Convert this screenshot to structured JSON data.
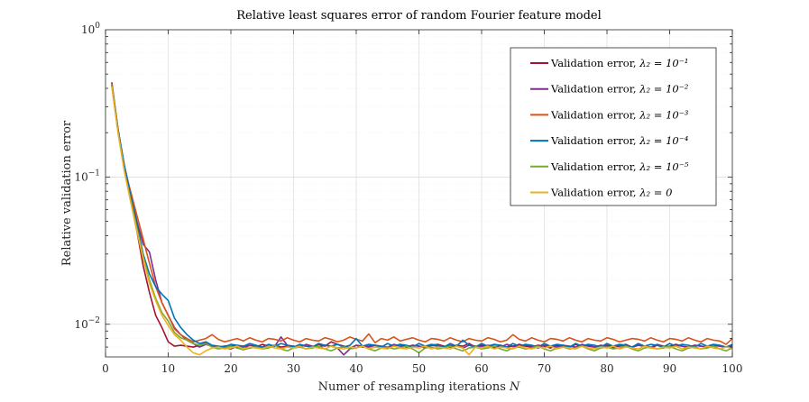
{
  "chart_data": {
    "type": "line",
    "title": "Relative least squares error of random Fourier feature model",
    "xlabel": "Numer of resampling iterations",
    "xlabel_var": "N",
    "ylabel": "Relative validation error",
    "xlim": [
      0,
      100
    ],
    "ylim": [
      0.006,
      1
    ],
    "yscale": "log",
    "grid": true,
    "legend_position": "top-right",
    "x_ticks": [
      0,
      10,
      20,
      30,
      40,
      50,
      60,
      70,
      80,
      90,
      100
    ],
    "y_ticks": [
      {
        "value": 0.01,
        "base": "10",
        "exp": "−2"
      },
      {
        "value": 0.1,
        "base": "10",
        "exp": "−1"
      },
      {
        "value": 1,
        "base": "10",
        "exp": "0"
      }
    ],
    "x": [
      1,
      2,
      3,
      4,
      5,
      6,
      7,
      8,
      9,
      10,
      11,
      12,
      13,
      14,
      15,
      16,
      17,
      18,
      19,
      20,
      21,
      22,
      23,
      24,
      25,
      26,
      27,
      28,
      29,
      30,
      31,
      32,
      33,
      34,
      35,
      36,
      37,
      38,
      39,
      40,
      41,
      42,
      43,
      44,
      45,
      46,
      47,
      48,
      49,
      50,
      51,
      52,
      53,
      54,
      55,
      56,
      57,
      58,
      59,
      60,
      61,
      62,
      63,
      64,
      65,
      66,
      67,
      68,
      69,
      70,
      71,
      72,
      73,
      74,
      75,
      76,
      77,
      78,
      79,
      80,
      81,
      82,
      83,
      84,
      85,
      86,
      87,
      88,
      89,
      90,
      91,
      92,
      93,
      94,
      95,
      96,
      97,
      98,
      99,
      100
    ],
    "series": [
      {
        "name": "Validation error,",
        "lambda_label": "λ₂ = 10⁻¹",
        "color": "#A2142F",
        "values": [
          0.44,
          0.21,
          0.115,
          0.07,
          0.043,
          0.025,
          0.0165,
          0.0115,
          0.0095,
          0.0076,
          0.0071,
          0.0072,
          0.0071,
          0.007,
          0.0072,
          0.0075,
          0.0071,
          0.007,
          0.0071,
          0.0072,
          0.007,
          0.0071,
          0.0069,
          0.007,
          0.0073,
          0.0071,
          0.0072,
          0.007,
          0.0071,
          0.0069,
          0.0072,
          0.0071,
          0.007,
          0.0073,
          0.0071,
          0.0076,
          0.0073,
          0.0071,
          0.0069,
          0.0072,
          0.007,
          0.0071,
          0.0072,
          0.007,
          0.0069,
          0.0071,
          0.0073,
          0.007,
          0.0072,
          0.0071,
          0.0069,
          0.0072,
          0.0073,
          0.0071,
          0.007,
          0.0072,
          0.0071,
          0.0074,
          0.007,
          0.0072,
          0.0071,
          0.0069,
          0.0072,
          0.007,
          0.0071,
          0.0073,
          0.0071,
          0.007,
          0.0072,
          0.0071,
          0.0069,
          0.0072,
          0.0071,
          0.007,
          0.0073,
          0.0071,
          0.0072,
          0.007,
          0.0071,
          0.0072,
          0.007,
          0.0071,
          0.0073,
          0.007,
          0.0072,
          0.0071,
          0.0069,
          0.0072,
          0.007,
          0.0071,
          0.0073,
          0.0071,
          0.007,
          0.0072,
          0.0071,
          0.007,
          0.0072,
          0.0071,
          0.007,
          0.0072
        ]
      },
      {
        "name": "Validation error,",
        "lambda_label": "λ₂ = 10⁻²",
        "color": "#7E2F8E",
        "values": [
          0.42,
          0.21,
          0.12,
          0.078,
          0.05,
          0.035,
          0.031,
          0.02,
          0.014,
          0.0115,
          0.0095,
          0.0085,
          0.0078,
          0.0074,
          0.007,
          0.0073,
          0.0071,
          0.007,
          0.0069,
          0.0068,
          0.0071,
          0.007,
          0.0072,
          0.0071,
          0.007,
          0.0072,
          0.0071,
          0.0082,
          0.0072,
          0.0071,
          0.007,
          0.0073,
          0.0071,
          0.007,
          0.0072,
          0.0071,
          0.0069,
          0.0062,
          0.0068,
          0.0072,
          0.0071,
          0.007,
          0.0072,
          0.0071,
          0.007,
          0.0073,
          0.0071,
          0.007,
          0.0072,
          0.0071,
          0.007,
          0.0072,
          0.0071,
          0.007,
          0.0072,
          0.0071,
          0.0069,
          0.0072,
          0.0071,
          0.007,
          0.0072,
          0.0071,
          0.007,
          0.0073,
          0.0071,
          0.007,
          0.0072,
          0.0071,
          0.0069,
          0.0072,
          0.0071,
          0.007,
          0.0072,
          0.0071,
          0.007,
          0.0073,
          0.0071,
          0.007,
          0.0072,
          0.0071,
          0.0069,
          0.0072,
          0.0071,
          0.007,
          0.0072,
          0.0071,
          0.007,
          0.0073,
          0.0071,
          0.007,
          0.0072,
          0.0071,
          0.0069,
          0.0072,
          0.0071,
          0.007,
          0.0072,
          0.0071,
          0.007,
          0.0071
        ]
      },
      {
        "name": "Validation error,",
        "lambda_label": "λ₂ = 10⁻³",
        "color": "#D95319",
        "values": [
          0.43,
          0.21,
          0.115,
          0.08,
          0.055,
          0.038,
          0.026,
          0.018,
          0.014,
          0.0115,
          0.0093,
          0.0085,
          0.008,
          0.0076,
          0.0078,
          0.008,
          0.0085,
          0.0079,
          0.0076,
          0.0078,
          0.008,
          0.0077,
          0.0081,
          0.0078,
          0.0076,
          0.008,
          0.0079,
          0.0077,
          0.0081,
          0.0078,
          0.0076,
          0.008,
          0.0078,
          0.0077,
          0.0081,
          0.0079,
          0.0076,
          0.0078,
          0.0082,
          0.0079,
          0.0077,
          0.0086,
          0.0075,
          0.008,
          0.0078,
          0.0082,
          0.0077,
          0.0079,
          0.0081,
          0.0078,
          0.0076,
          0.008,
          0.0079,
          0.0077,
          0.0081,
          0.0078,
          0.0076,
          0.008,
          0.0078,
          0.0077,
          0.0081,
          0.0079,
          0.0076,
          0.0078,
          0.0085,
          0.0079,
          0.0077,
          0.0081,
          0.0078,
          0.0076,
          0.008,
          0.0079,
          0.0077,
          0.0081,
          0.0078,
          0.0076,
          0.008,
          0.0078,
          0.0077,
          0.0081,
          0.0079,
          0.0076,
          0.0078,
          0.008,
          0.0079,
          0.0077,
          0.0081,
          0.0078,
          0.0076,
          0.008,
          0.0079,
          0.0077,
          0.0081,
          0.0078,
          0.0076,
          0.008,
          0.0078,
          0.0077,
          0.0073,
          0.008
        ]
      },
      {
        "name": "Validation error,",
        "lambda_label": "λ₂ = 10⁻⁴",
        "color": "#0072BD",
        "values": [
          0.42,
          0.21,
          0.12,
          0.075,
          0.048,
          0.03,
          0.022,
          0.018,
          0.016,
          0.0145,
          0.011,
          0.0095,
          0.0085,
          0.0078,
          0.0074,
          0.0076,
          0.0072,
          0.0071,
          0.007,
          0.0073,
          0.0072,
          0.0071,
          0.0074,
          0.0072,
          0.007,
          0.0073,
          0.0071,
          0.0074,
          0.0072,
          0.007,
          0.0073,
          0.0071,
          0.007,
          0.0074,
          0.0072,
          0.0071,
          0.0073,
          0.007,
          0.0072,
          0.008,
          0.0071,
          0.0073,
          0.0072,
          0.007,
          0.0074,
          0.0071,
          0.0073,
          0.0072,
          0.007,
          0.0074,
          0.0071,
          0.0073,
          0.0072,
          0.007,
          0.0074,
          0.0071,
          0.0078,
          0.0072,
          0.007,
          0.0074,
          0.0071,
          0.0073,
          0.0072,
          0.007,
          0.0074,
          0.0071,
          0.0073,
          0.0072,
          0.007,
          0.0074,
          0.0071,
          0.0073,
          0.0072,
          0.007,
          0.0074,
          0.0071,
          0.0073,
          0.0072,
          0.007,
          0.0074,
          0.0071,
          0.0073,
          0.0072,
          0.007,
          0.0074,
          0.0071,
          0.0073,
          0.0072,
          0.007,
          0.0074,
          0.0071,
          0.0073,
          0.0072,
          0.007,
          0.0074,
          0.0071,
          0.0073,
          0.0072,
          0.007,
          0.0073
        ]
      },
      {
        "name": "Validation error,",
        "lambda_label": "λ₂ = 10⁻⁵",
        "color": "#77AC30",
        "values": [
          0.42,
          0.2,
          0.11,
          0.07,
          0.045,
          0.029,
          0.02,
          0.015,
          0.012,
          0.0105,
          0.0088,
          0.0081,
          0.0078,
          0.0074,
          0.0072,
          0.0074,
          0.007,
          0.0068,
          0.0069,
          0.0071,
          0.0069,
          0.0067,
          0.0069,
          0.007,
          0.0068,
          0.0069,
          0.0072,
          0.0068,
          0.0066,
          0.0069,
          0.007,
          0.0068,
          0.0069,
          0.0071,
          0.0068,
          0.0066,
          0.0069,
          0.007,
          0.0068,
          0.0069,
          0.0071,
          0.0068,
          0.0066,
          0.0069,
          0.007,
          0.0068,
          0.0069,
          0.0071,
          0.0068,
          0.0064,
          0.0069,
          0.007,
          0.0068,
          0.0069,
          0.0071,
          0.0068,
          0.0066,
          0.0069,
          0.007,
          0.0068,
          0.0069,
          0.0071,
          0.0068,
          0.0066,
          0.0069,
          0.007,
          0.0068,
          0.0069,
          0.0071,
          0.0068,
          0.0066,
          0.0069,
          0.007,
          0.0068,
          0.0069,
          0.0071,
          0.0068,
          0.0066,
          0.0069,
          0.007,
          0.0068,
          0.0069,
          0.0071,
          0.0068,
          0.0066,
          0.0069,
          0.007,
          0.0068,
          0.0069,
          0.0071,
          0.0068,
          0.0066,
          0.0069,
          0.007,
          0.0068,
          0.0069,
          0.0071,
          0.0068,
          0.0066,
          0.0069
        ]
      },
      {
        "name": "Validation error,",
        "lambda_label": "λ₂ = 0",
        "color": "#EDB120",
        "values": [
          0.41,
          0.2,
          0.11,
          0.068,
          0.043,
          0.028,
          0.019,
          0.0145,
          0.0115,
          0.0098,
          0.0085,
          0.0078,
          0.007,
          0.0064,
          0.0062,
          0.0066,
          0.0069,
          0.007,
          0.0068,
          0.0069,
          0.0071,
          0.0068,
          0.007,
          0.0069,
          0.0068,
          0.0071,
          0.0069,
          0.0068,
          0.007,
          0.0069,
          0.0071,
          0.0068,
          0.007,
          0.0069,
          0.0068,
          0.0071,
          0.0069,
          0.0068,
          0.007,
          0.0069,
          0.0071,
          0.0068,
          0.007,
          0.0069,
          0.0068,
          0.0071,
          0.0069,
          0.0068,
          0.007,
          0.0069,
          0.0071,
          0.0068,
          0.007,
          0.0069,
          0.0068,
          0.0071,
          0.0069,
          0.0062,
          0.007,
          0.0069,
          0.0071,
          0.0068,
          0.007,
          0.0069,
          0.0068,
          0.0071,
          0.0069,
          0.0068,
          0.007,
          0.0069,
          0.0071,
          0.0068,
          0.007,
          0.0069,
          0.0068,
          0.0071,
          0.0069,
          0.0068,
          0.007,
          0.0069,
          0.0071,
          0.0068,
          0.007,
          0.0069,
          0.0068,
          0.0071,
          0.0069,
          0.0068,
          0.007,
          0.0069,
          0.0071,
          0.0068,
          0.007,
          0.0069,
          0.0068,
          0.0071,
          0.0069,
          0.0068,
          0.007,
          0.0069
        ]
      }
    ]
  }
}
